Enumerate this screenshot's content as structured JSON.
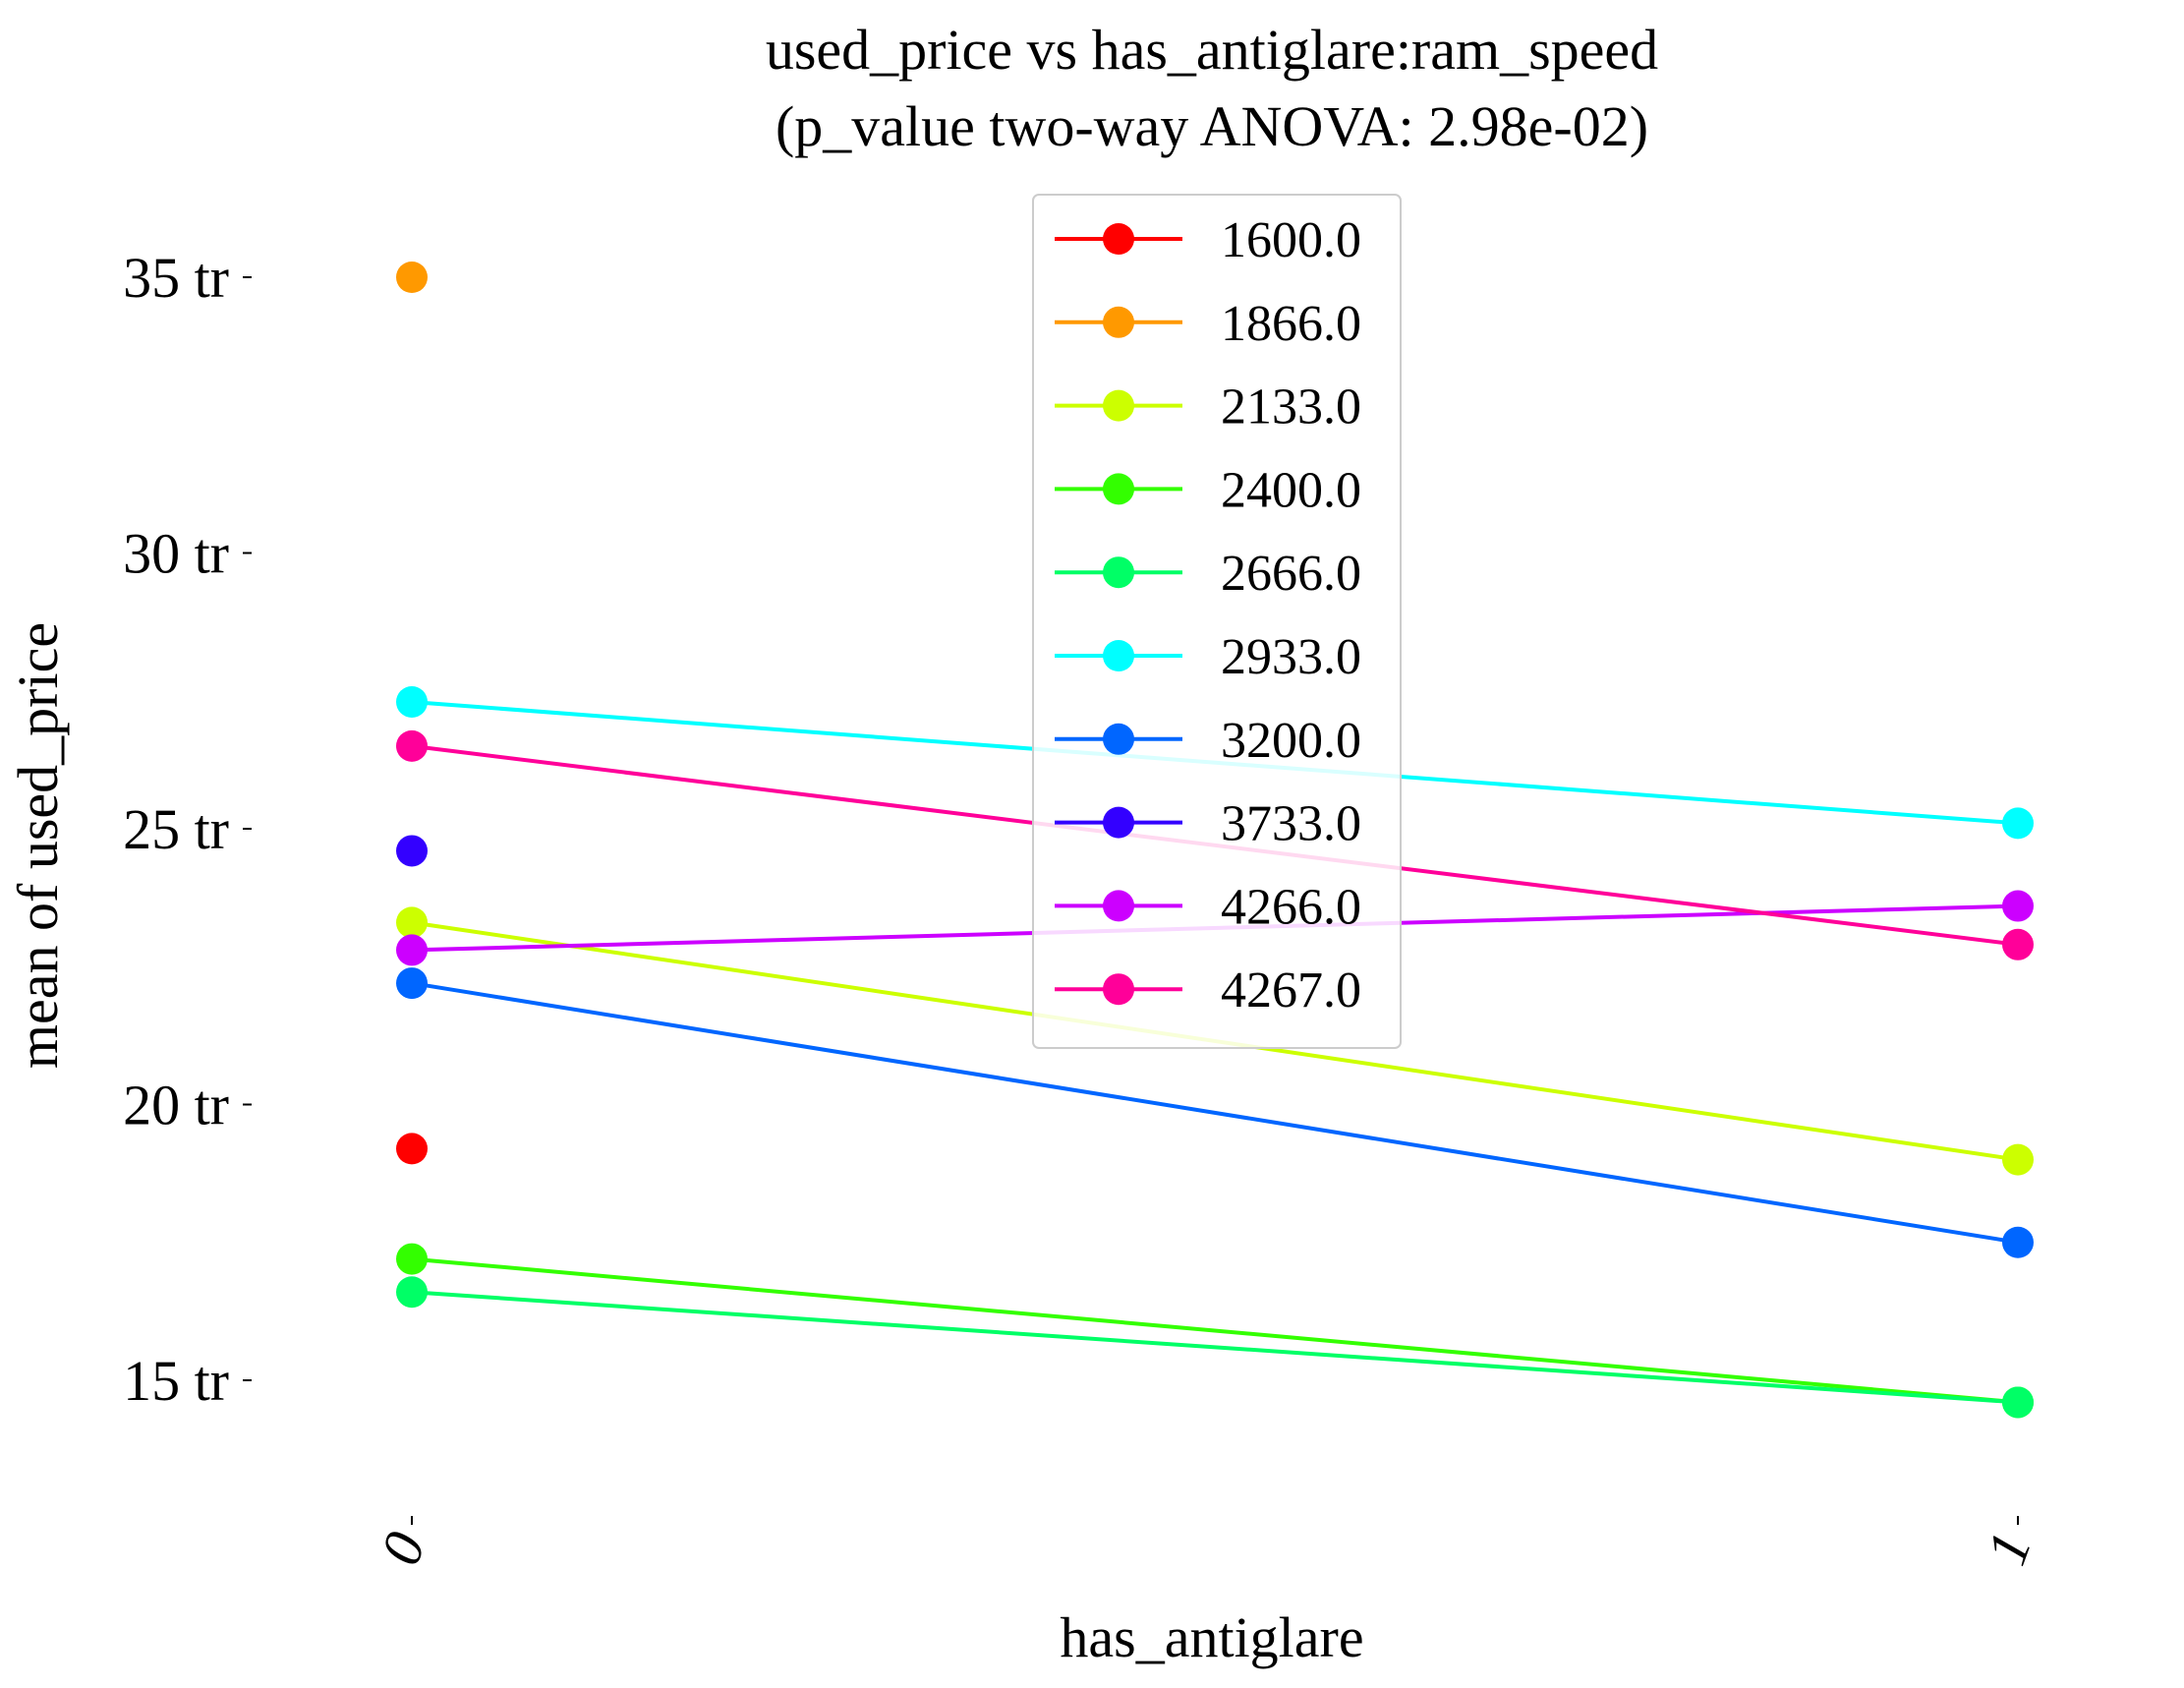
{
  "chart_data": {
    "type": "line",
    "title": "used_price vs has_antiglare:ram_speed",
    "subtitle": "(p_value two-way ANOVA: 2.98e-02)",
    "xlabel": "has_antiglare",
    "ylabel": "mean of used_price",
    "categories": [
      "0",
      "1"
    ],
    "ylim": [
      12.5,
      36.5
    ],
    "yticks": [
      15,
      20,
      25,
      30,
      35
    ],
    "ytick_labels": [
      "15 tr",
      "20 tr",
      "25 tr",
      "30 tr",
      "35 tr"
    ],
    "grid": false,
    "legend_position": "top-center",
    "series": [
      {
        "name": "1600.0",
        "color": "#ff0000",
        "values": [
          19.2,
          null
        ]
      },
      {
        "name": "1866.0",
        "color": "#ff9900",
        "values": [
          35.0,
          null
        ]
      },
      {
        "name": "2133.0",
        "color": "#ccff00",
        "values": [
          23.3,
          19.0
        ]
      },
      {
        "name": "2400.0",
        "color": "#33ff00",
        "values": [
          17.2,
          14.6
        ]
      },
      {
        "name": "2666.0",
        "color": "#00ff66",
        "values": [
          16.6,
          14.6
        ]
      },
      {
        "name": "2933.0",
        "color": "#00ffff",
        "values": [
          27.3,
          25.1
        ]
      },
      {
        "name": "3200.0",
        "color": "#0066ff",
        "values": [
          22.2,
          17.5
        ]
      },
      {
        "name": "3733.0",
        "color": "#3300ff",
        "values": [
          24.6,
          null
        ]
      },
      {
        "name": "4266.0",
        "color": "#cc00ff",
        "values": [
          22.8,
          23.6
        ]
      },
      {
        "name": "4267.0",
        "color": "#ff0099",
        "values": [
          26.5,
          22.9
        ]
      }
    ]
  }
}
